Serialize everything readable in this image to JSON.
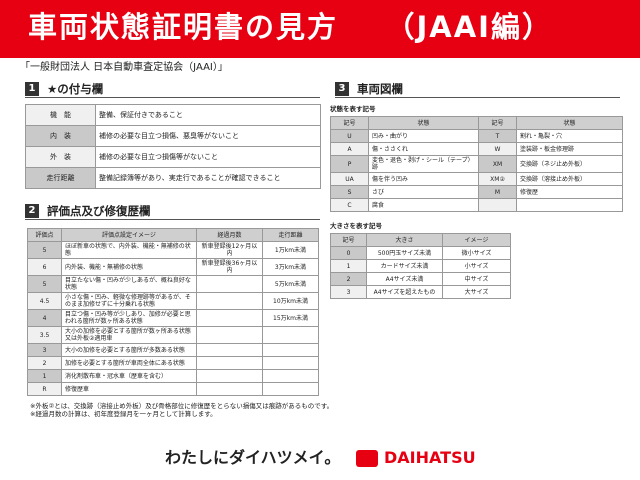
{
  "title": "車両状態証明書の見方　　（JAAI編）",
  "org": "「一般財団法人 日本自動車査定協会（JAAI）」",
  "s1": {
    "num": "1",
    "title": "★の付与欄",
    "rows": [
      [
        "機　能",
        "整備、保証付きであること"
      ],
      [
        "内　装",
        "補修の必要な目立つ損傷、悪臭等がないこと"
      ],
      [
        "外　装",
        "補修の必要な目立つ損傷等がないこと"
      ],
      [
        "走行距離",
        "整備記録簿等があり、実走行であることが確認できること"
      ]
    ]
  },
  "s2": {
    "num": "2",
    "title": "評価点及び修復歴欄",
    "headers": [
      "評価点",
      "評価点設定イメージ",
      "経過月数",
      "走行距離"
    ],
    "rows": [
      [
        "5",
        "ほぼ新車の状態で、内外装、機能・無補修の状態",
        "新車登録後12ヶ月以内",
        "1万km未満"
      ],
      [
        "6",
        "内外装、機能・無補修の状態",
        "新車登録後36ヶ月以内",
        "3万km未満"
      ],
      [
        "5",
        "目立たない傷・凹みが少しあるが、概ね良好な状態",
        "",
        "5万km未満"
      ],
      [
        "4.5",
        "小さな傷・凹み、軽微な修理跡等があるが、そのまま加修せずに十分乗れる状態",
        "",
        "10万km未満"
      ],
      [
        "4",
        "目立つ傷・凹み等が少しあり、加修が必要と思われる箇所が数ヶ所ある状態",
        "",
        "15万km未満"
      ],
      [
        "3.5",
        "大小の加修を必要とする箇所が数ヶ所ある状態又は外板②適用車",
        "",
        ""
      ],
      [
        "3",
        "大小の加修を必要とする箇所が多数ある状態",
        "",
        ""
      ],
      [
        "2",
        "加修を必要とする箇所が車両全体にある状態",
        "",
        ""
      ],
      [
        "1",
        "消化剤散布車・冠水車（歴車を含む）",
        "",
        ""
      ],
      [
        "R",
        "修復歴車",
        "",
        ""
      ]
    ]
  },
  "notes": [
    "※外板②とは、交換跡（溶接止め外板）及び骨格部位に修復歴をとらない損傷又は痕跡があるものです。",
    "※経過月数の計算は、初年度登録月を一ヶ月として計算します。"
  ],
  "s3": {
    "num": "3",
    "title": "車両図欄",
    "cond_label": "状態を表す記号",
    "cond_headers": [
      "記号",
      "状態",
      "記号",
      "状態"
    ],
    "cond_rows": [
      [
        "U",
        "凹み・曲がり",
        "T",
        "割れ・亀裂・穴"
      ],
      [
        "A",
        "傷・ささくれ",
        "W",
        "塗装跡・板金修理跡"
      ],
      [
        "P",
        "変色・退色・剥げ・シール（テープ）跡",
        "XM",
        "交換跡（ネジ止め外板）"
      ],
      [
        "UA",
        "傷を伴う凹み",
        "XM②",
        "交換跡（溶接止め外板）"
      ],
      [
        "S",
        "さび",
        "M",
        "修復歴"
      ],
      [
        "C",
        "腐食",
        "",
        ""
      ]
    ],
    "size_label": "大きさを表す記号",
    "size_headers": [
      "記号",
      "大きさ",
      "イメージ"
    ],
    "size_rows": [
      [
        "0",
        "500円玉サイズ未満",
        "微小サイズ"
      ],
      [
        "1",
        "カードサイズ未満",
        "小サイズ"
      ],
      [
        "2",
        "A4サイズ未満",
        "中サイズ"
      ],
      [
        "3",
        "A4サイズを超えたもの",
        "大サイズ"
      ]
    ]
  },
  "footer": {
    "slogan": "わたしにダイハツメイ。",
    "brand": "DAIHATSU",
    "brand_color": "#e60012"
  }
}
